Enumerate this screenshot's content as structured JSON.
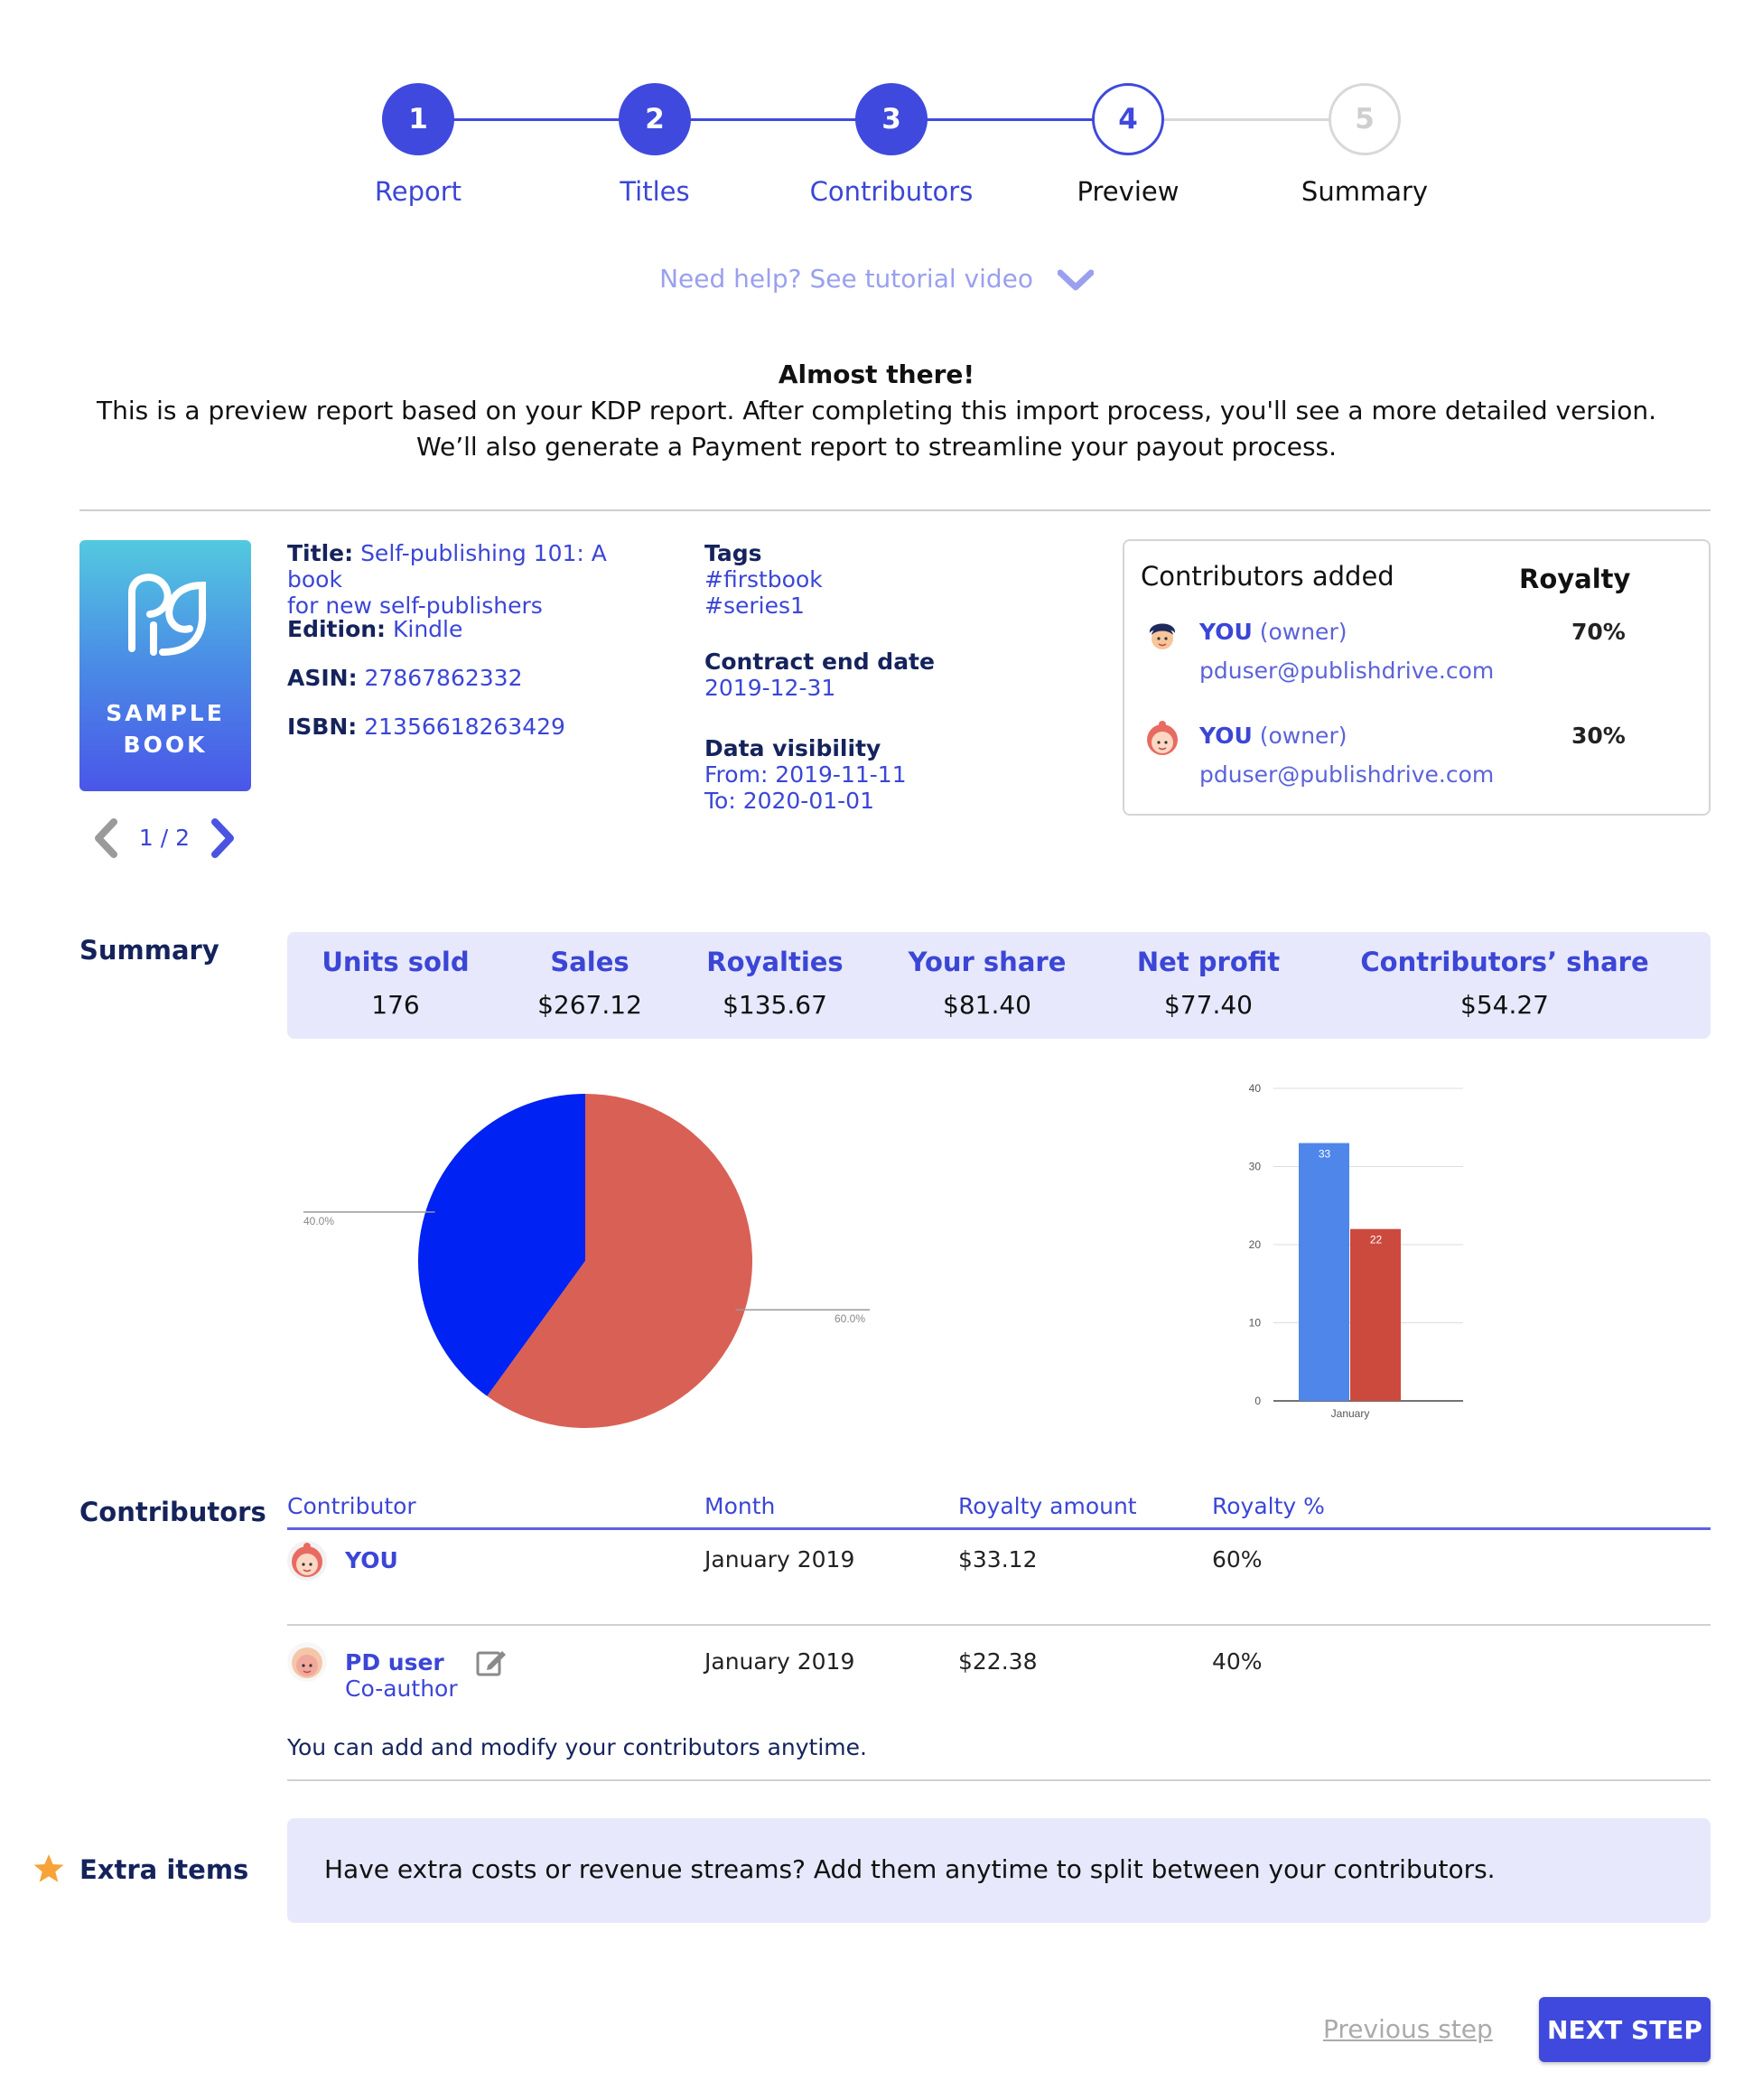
{
  "stepper": {
    "steps": [
      {
        "number": "1",
        "label": "Report"
      },
      {
        "number": "2",
        "label": "Titles"
      },
      {
        "number": "3",
        "label": "Contributors"
      },
      {
        "number": "4",
        "label": "Preview"
      },
      {
        "number": "5",
        "label": "Summary"
      }
    ]
  },
  "help_text": "Need help? See tutorial video",
  "intro": {
    "heading": "Almost there!",
    "line1": "This is a preview report based on your KDP report. After completing this import process, you'll see a more detailed version.",
    "line2": "We’ll also generate a Payment report to streamline your payout process."
  },
  "book": {
    "cover_label_1": "SAMPLE",
    "cover_label_2": "BOOK",
    "pager": "1 / 2",
    "title_label": "Title:",
    "title_line1": "Self-publishing 101: A book",
    "title_line2": "for new self-publishers",
    "edition_label": "Edition:",
    "edition": "Kindle",
    "asin_label": "ASIN:",
    "asin": "27867862332",
    "isbn_label": "ISBN:",
    "isbn": "21356618263429",
    "tags_label": "Tags",
    "tags": [
      "#firstbook",
      "#series1"
    ],
    "contract_label": "Contract end date",
    "contract_end": "2019-12-31",
    "visibility_label": "Data visibility",
    "visibility_from": "From: 2019-11-11",
    "visibility_to": "To: 2020-01-01"
  },
  "contributors_added": {
    "title": "Contributors added",
    "royalty_header": "Royalty",
    "items": [
      {
        "name": "YOU",
        "role": "(owner)",
        "email": "pduser@publishdrive.com",
        "royalty": "70%"
      },
      {
        "name": "YOU",
        "role": "(owner)",
        "email": "pduser@publishdrive.com",
        "royalty": "30%"
      }
    ]
  },
  "summary": {
    "title": "Summary",
    "cols": [
      {
        "label": "Units sold",
        "value": "176"
      },
      {
        "label": "Sales",
        "value": "$267.12"
      },
      {
        "label": "Royalties",
        "value": "$135.67"
      },
      {
        "label": "Your share",
        "value": "$81.40"
      },
      {
        "label": "Net profit",
        "value": "$77.40"
      },
      {
        "label": "Contributors’ share",
        "value": "$54.27"
      }
    ]
  },
  "chart_data": [
    {
      "type": "pie",
      "slices": [
        {
          "label": "60.0%",
          "value": 60,
          "color": "#d96055"
        },
        {
          "label": "40.0%",
          "value": 40,
          "color": "#0022f2"
        }
      ]
    },
    {
      "type": "bar",
      "categories": [
        "January"
      ],
      "series": [
        {
          "values": [
            33
          ],
          "color": "#4f86ea"
        },
        {
          "values": [
            22
          ],
          "color": "#cc4a3d"
        }
      ],
      "ylim": [
        0,
        40
      ],
      "yticks": [
        "0",
        "10",
        "20",
        "30",
        "40"
      ],
      "grid": true
    }
  ],
  "contributors_table": {
    "title": "Contributors",
    "headers": [
      "Contributor",
      "Month",
      "Royalty amount",
      "Royalty %"
    ],
    "rows": [
      {
        "name": "YOU",
        "subtitle": "",
        "month": "January 2019",
        "amount": "$33.12",
        "percent": "60%"
      },
      {
        "name": "PD user",
        "subtitle": "Co-author",
        "month": "January 2019",
        "amount": "$22.38",
        "percent": "40%"
      }
    ],
    "note": "You can add and modify your contributors anytime."
  },
  "extra_items": {
    "title": "Extra items",
    "text": "Have extra costs or revenue streams? Add them anytime to split between your contributors."
  },
  "nav": {
    "prev": "Previous step",
    "next": "NEXT STEP"
  },
  "colors": {
    "accent": "#3f49dd",
    "navy": "#15235c",
    "light_bg": "#e7e8fb"
  }
}
